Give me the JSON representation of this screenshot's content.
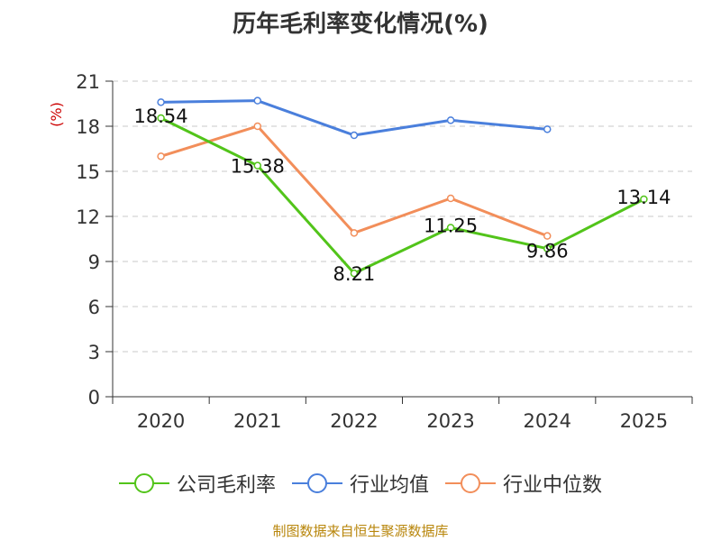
{
  "chart_data": {
    "type": "line",
    "title": "历年毛利率变化情况(%)",
    "ylabel": "(%)",
    "xlabel": "",
    "categories": [
      "2020",
      "2021",
      "2022",
      "2023",
      "2024",
      "2025"
    ],
    "ylim": [
      0,
      21
    ],
    "yticks": [
      0,
      3,
      6,
      9,
      12,
      15,
      18,
      21
    ],
    "grid": "horizontal dashed",
    "legend_position": "bottom",
    "series": [
      {
        "name": "公司毛利率",
        "color": "#52c41a",
        "values": [
          18.54,
          15.38,
          8.21,
          11.25,
          9.86,
          13.14
        ],
        "labels": [
          "18.54",
          "15.38",
          "8.21",
          "11.25",
          "9.86",
          "13.14"
        ]
      },
      {
        "name": "行业均值",
        "color": "#4a7fdc",
        "values": [
          19.6,
          19.7,
          17.4,
          18.4,
          17.8,
          null
        ]
      },
      {
        "name": "行业中位数",
        "color": "#f28e5a",
        "values": [
          16.0,
          18.0,
          10.9,
          13.2,
          10.7,
          null
        ]
      }
    ]
  },
  "source": "制图数据来自恒生聚源数据库"
}
